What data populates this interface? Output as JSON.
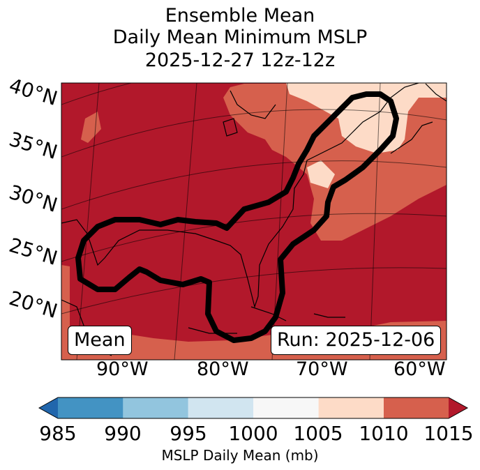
{
  "title": {
    "line1": "Ensemble Mean",
    "line2": "Daily Mean Minimum MSLP",
    "line3": "2025-12-27 12z-12z"
  },
  "map": {
    "latitude_labels": [
      "40°N",
      "35°N",
      "30°N",
      "25°N",
      "20°N"
    ],
    "longitude_labels": [
      "90°W",
      "80°W",
      "70°W",
      "60°W"
    ],
    "mean_label": "Mean",
    "run_label": "Run: 2025-12-06",
    "contour_color": "#000000",
    "field_colors": {
      "band_1005_1010": "#fddbc7",
      "band_1010_1015": "#d6604d",
      "band_above_1015": "#b2182b"
    }
  },
  "colorbar": {
    "title": "MSLP Daily Mean (mb)",
    "tick_labels": [
      "985",
      "990",
      "995",
      "1000",
      "1005",
      "1010",
      "1015"
    ],
    "colors": [
      "#2166ac",
      "#4393c3",
      "#92c5de",
      "#d1e5f0",
      "#f7f7f7",
      "#fddbc7",
      "#d6604d",
      "#b2182b"
    ]
  }
}
